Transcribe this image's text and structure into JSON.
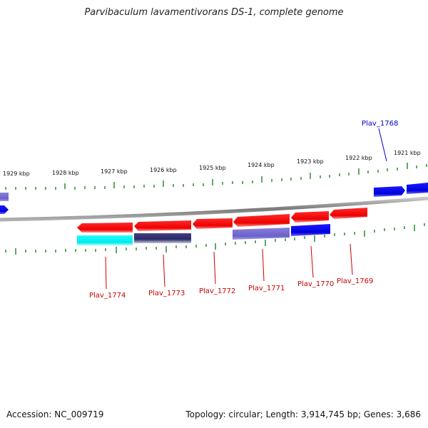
{
  "title": "Parvibaculum lavamentivorans DS-1, complete genome",
  "footer": {
    "accession": "Accession: NC_009719",
    "stats": "Topology: circular; Length: 3,914,745 bp; Genes: 3,686"
  },
  "colors": {
    "backbone": "#808080",
    "tick": "#2e8b2e",
    "forward_gene": "#0000dd",
    "reverse_gene": "#ee0000",
    "forward_label": "#0000cc",
    "reverse_label": "#cc0000"
  },
  "ruler": {
    "ticks": [
      "1929 kbp",
      "1928 kbp",
      "1927 kbp",
      "1926 kbp",
      "1925 kbp",
      "1924 kbp",
      "1923 kbp",
      "1922 kbp",
      "1921 kbp"
    ]
  },
  "genes": [
    {
      "name": "Plav_1768",
      "strand": "forward",
      "labeled": true
    },
    {
      "name": "Plav_1769",
      "strand": "reverse",
      "labeled": true
    },
    {
      "name": "Plav_1770",
      "strand": "reverse",
      "labeled": true
    },
    {
      "name": "Plav_1771",
      "strand": "reverse",
      "labeled": true
    },
    {
      "name": "Plav_1772",
      "strand": "reverse",
      "labeled": true
    },
    {
      "name": "Plav_1773",
      "strand": "reverse",
      "labeled": true
    },
    {
      "name": "Plav_1774",
      "strand": "reverse",
      "labeled": true
    }
  ]
}
